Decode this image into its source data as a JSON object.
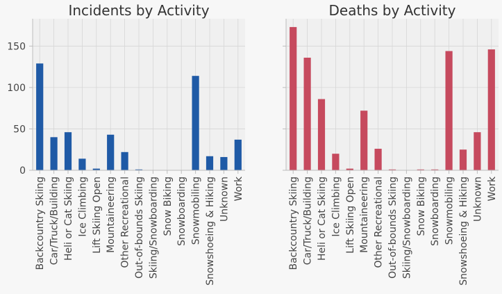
{
  "chart_data": [
    {
      "type": "bar",
      "title": "Incidents by Activity",
      "categories": [
        "Backcountry Skiing",
        "Car/Truck/Building",
        "Heli or Cat Skiing",
        "Ice Climbing",
        "Lift Skiing Open",
        "Mountaineering",
        "Other Recreational",
        "Out-of-bounds Skiing",
        "Skiing/Snowboarding",
        "Snow Biking",
        "Snowboarding",
        "Snowmobiling",
        "Snowshoeing & Hiking",
        "Unknown",
        "Work"
      ],
      "values": [
        129,
        40,
        46,
        14,
        2,
        43,
        22,
        1,
        0,
        0,
        0,
        114,
        17,
        16,
        37
      ],
      "ylim": [
        0,
        183
      ],
      "yticks": [
        0,
        50,
        100,
        150
      ],
      "show_ytick_labels": true,
      "color": "#1f5aa6",
      "grid": true
    },
    {
      "type": "bar",
      "title": "Deaths by Activity",
      "categories": [
        "Backcountry Skiing",
        "Car/Truck/Building",
        "Heli or Cat Skiing",
        "Ice Climbing",
        "Lift Skiing Open",
        "Mountaineering",
        "Other Recreational",
        "Out-of-bounds Skiing",
        "Skiing/Snowboarding",
        "Snow Biking",
        "Snowboarding",
        "Snowmobiling",
        "Snowshoeing & Hiking",
        "Unknown",
        "Work"
      ],
      "values": [
        173,
        136,
        86,
        20,
        2,
        72,
        26,
        1,
        0,
        1,
        1,
        144,
        25,
        46,
        146
      ],
      "ylim": [
        0,
        183
      ],
      "yticks": [
        0,
        50,
        100,
        150
      ],
      "show_ytick_labels": false,
      "color": "#c64a5e",
      "grid": true
    }
  ]
}
